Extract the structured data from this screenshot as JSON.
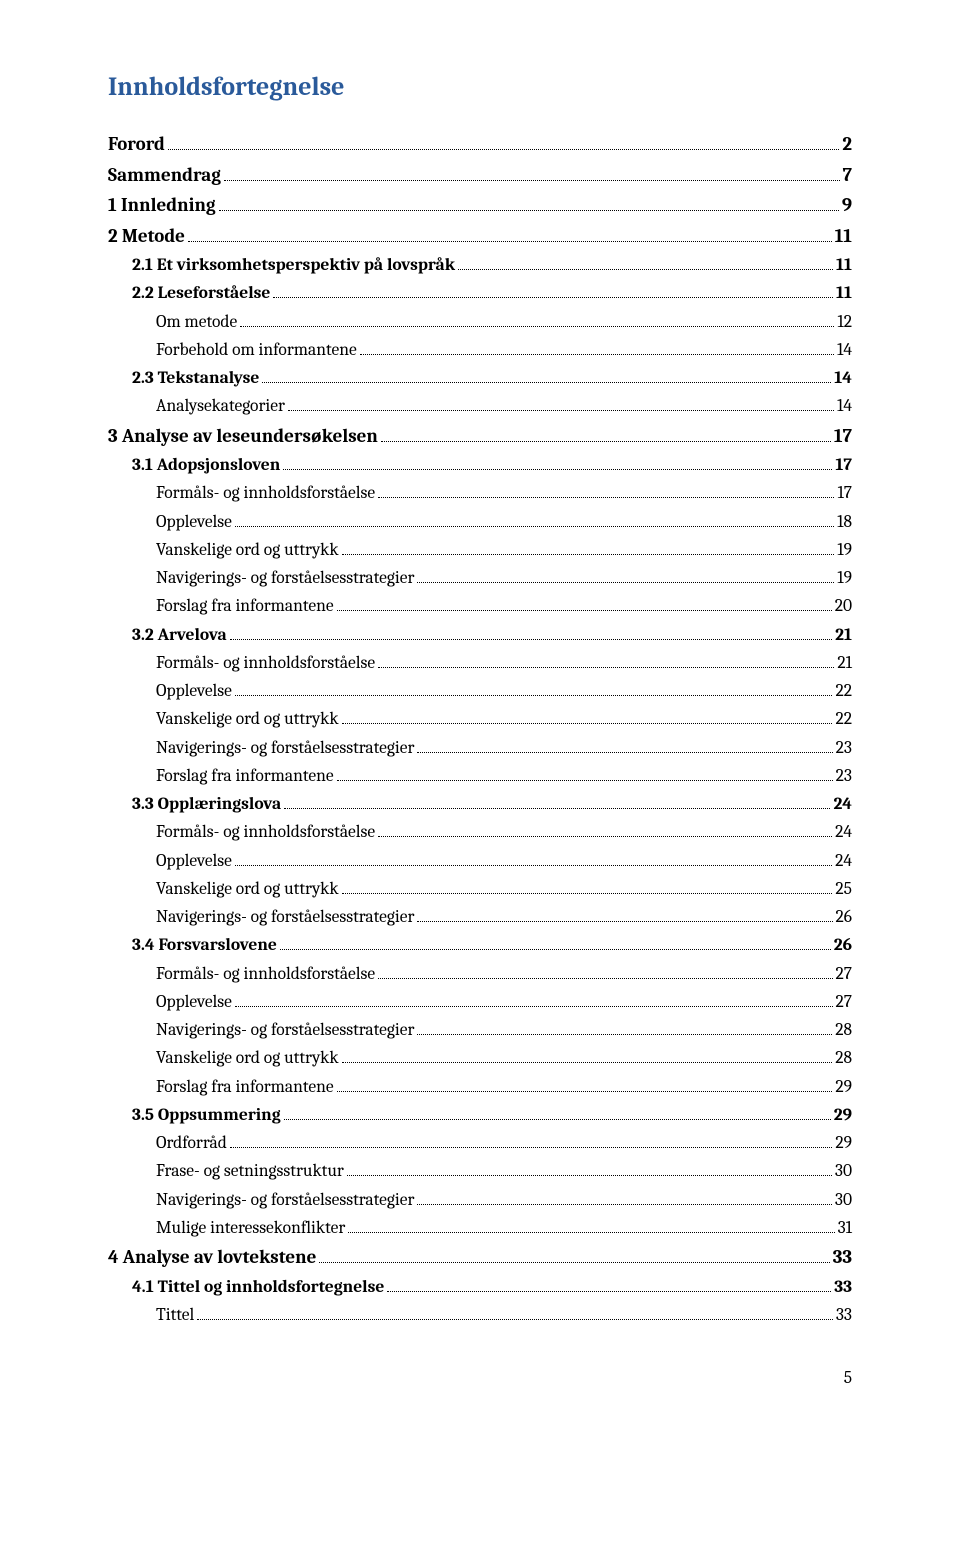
{
  "title": {
    "text": "Innholdsfortegnelse",
    "color": "#2a5a9a",
    "fontsize": 26
  },
  "page_number": "5",
  "entries": [
    {
      "level": 0,
      "label": "Forord",
      "page": "2",
      "bold": true
    },
    {
      "level": 0,
      "label": "Sammendrag",
      "page": "7",
      "bold": true
    },
    {
      "level": 0,
      "label": "1 Innledning",
      "page": "9",
      "bold": true
    },
    {
      "level": 0,
      "label": "2 Metode",
      "page": "11",
      "bold": true
    },
    {
      "level": 1,
      "label": "2.1 Et virksomhetsperspektiv på lovspråk",
      "page": "11",
      "bold": true
    },
    {
      "level": 1,
      "label": "2.2 Leseforståelse",
      "page": "11",
      "bold": true
    },
    {
      "level": 2,
      "label": "Om metode",
      "page": "12",
      "bold": false
    },
    {
      "level": 2,
      "label": "Forbehold om informantene",
      "page": "14",
      "bold": false
    },
    {
      "level": 1,
      "label": "2.3 Tekstanalyse",
      "page": "14",
      "bold": true
    },
    {
      "level": 2,
      "label": "Analysekategorier",
      "page": "14",
      "bold": false
    },
    {
      "level": 0,
      "label": "3 Analyse av leseundersøkelsen",
      "page": "17",
      "bold": true
    },
    {
      "level": 1,
      "label": "3.1 Adopsjonsloven",
      "page": "17",
      "bold": true
    },
    {
      "level": 2,
      "label": "Formåls- og innholdsforståelse",
      "page": "17",
      "bold": false
    },
    {
      "level": 2,
      "label": "Opplevelse",
      "page": "18",
      "bold": false
    },
    {
      "level": 2,
      "label": "Vanskelige ord og uttrykk",
      "page": "19",
      "bold": false
    },
    {
      "level": 2,
      "label": "Navigerings- og forståelsesstrategier",
      "page": "19",
      "bold": false
    },
    {
      "level": 2,
      "label": "Forslag fra informantene",
      "page": "20",
      "bold": false
    },
    {
      "level": 1,
      "label": "3.2 Arvelova",
      "page": "21",
      "bold": true
    },
    {
      "level": 2,
      "label": "Formåls- og innholdsforståelse",
      "page": "21",
      "bold": false
    },
    {
      "level": 2,
      "label": "Opplevelse",
      "page": "22",
      "bold": false
    },
    {
      "level": 2,
      "label": "Vanskelige ord og uttrykk",
      "page": "22",
      "bold": false
    },
    {
      "level": 2,
      "label": "Navigerings- og forståelsesstrategier",
      "page": "23",
      "bold": false
    },
    {
      "level": 2,
      "label": "Forslag fra informantene",
      "page": "23",
      "bold": false
    },
    {
      "level": 1,
      "label": "3.3 Opplæringslova",
      "page": "24",
      "bold": true
    },
    {
      "level": 2,
      "label": "Formåls- og innholdsforståelse",
      "page": "24",
      "bold": false
    },
    {
      "level": 2,
      "label": "Opplevelse",
      "page": "24",
      "bold": false
    },
    {
      "level": 2,
      "label": "Vanskelige ord og uttrykk",
      "page": "25",
      "bold": false
    },
    {
      "level": 2,
      "label": "Navigerings- og forståelsesstrategier",
      "page": "26",
      "bold": false
    },
    {
      "level": 1,
      "label": "3.4 Forsvarslovene",
      "page": "26",
      "bold": true
    },
    {
      "level": 2,
      "label": "Formåls- og innholdsforståelse",
      "page": "27",
      "bold": false
    },
    {
      "level": 2,
      "label": "Opplevelse",
      "page": "27",
      "bold": false
    },
    {
      "level": 2,
      "label": "Navigerings- og forståelsesstrategier",
      "page": "28",
      "bold": false
    },
    {
      "level": 2,
      "label": "Vanskelige ord og uttrykk",
      "page": "28",
      "bold": false
    },
    {
      "level": 2,
      "label": "Forslag fra informantene",
      "page": "29",
      "bold": false
    },
    {
      "level": 1,
      "label": "3.5 Oppsummering",
      "page": "29",
      "bold": true
    },
    {
      "level": 2,
      "label": "Ordforråd",
      "page": "29",
      "bold": false
    },
    {
      "level": 2,
      "label": "Frase- og setningsstruktur",
      "page": "30",
      "bold": false
    },
    {
      "level": 2,
      "label": "Navigerings- og forståelsesstrategier",
      "page": "30",
      "bold": false
    },
    {
      "level": 2,
      "label": "Mulige interessekonflikter",
      "page": "31",
      "bold": false
    },
    {
      "level": 0,
      "label": "4 Analyse av lovtekstene",
      "page": "33",
      "bold": true
    },
    {
      "level": 1,
      "label": "4.1 Tittel og innholdsfortegnelse",
      "page": "33",
      "bold": true
    },
    {
      "level": 2,
      "label": "Tittel",
      "page": "33",
      "bold": false
    }
  ]
}
